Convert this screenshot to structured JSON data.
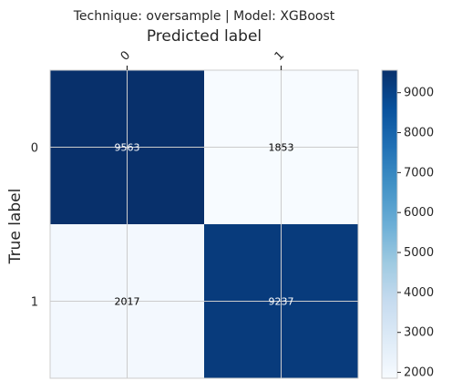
{
  "chart_data": {
    "type": "heatmap",
    "title": "Technique: oversample | Model: XGBoost",
    "xlabel": "Predicted label",
    "ylabel": "True label",
    "x_categories": [
      "0",
      "1"
    ],
    "y_categories": [
      "0",
      "1"
    ],
    "values": [
      [
        9563,
        1853
      ],
      [
        2017,
        9237
      ]
    ],
    "value_labels": [
      [
        "9563",
        "1853"
      ],
      [
        "2017",
        "9237"
      ]
    ],
    "colorbar": {
      "colormap": "Blues",
      "range": [
        1853,
        9563
      ],
      "ticks": [
        2000,
        3000,
        4000,
        5000,
        6000,
        7000,
        8000,
        9000
      ],
      "tick_labels": [
        "2000",
        "3000",
        "4000",
        "5000",
        "6000",
        "7000",
        "8000",
        "9000"
      ]
    },
    "x_axis_position": "top",
    "x_tick_rotation": -45,
    "grid": true
  }
}
